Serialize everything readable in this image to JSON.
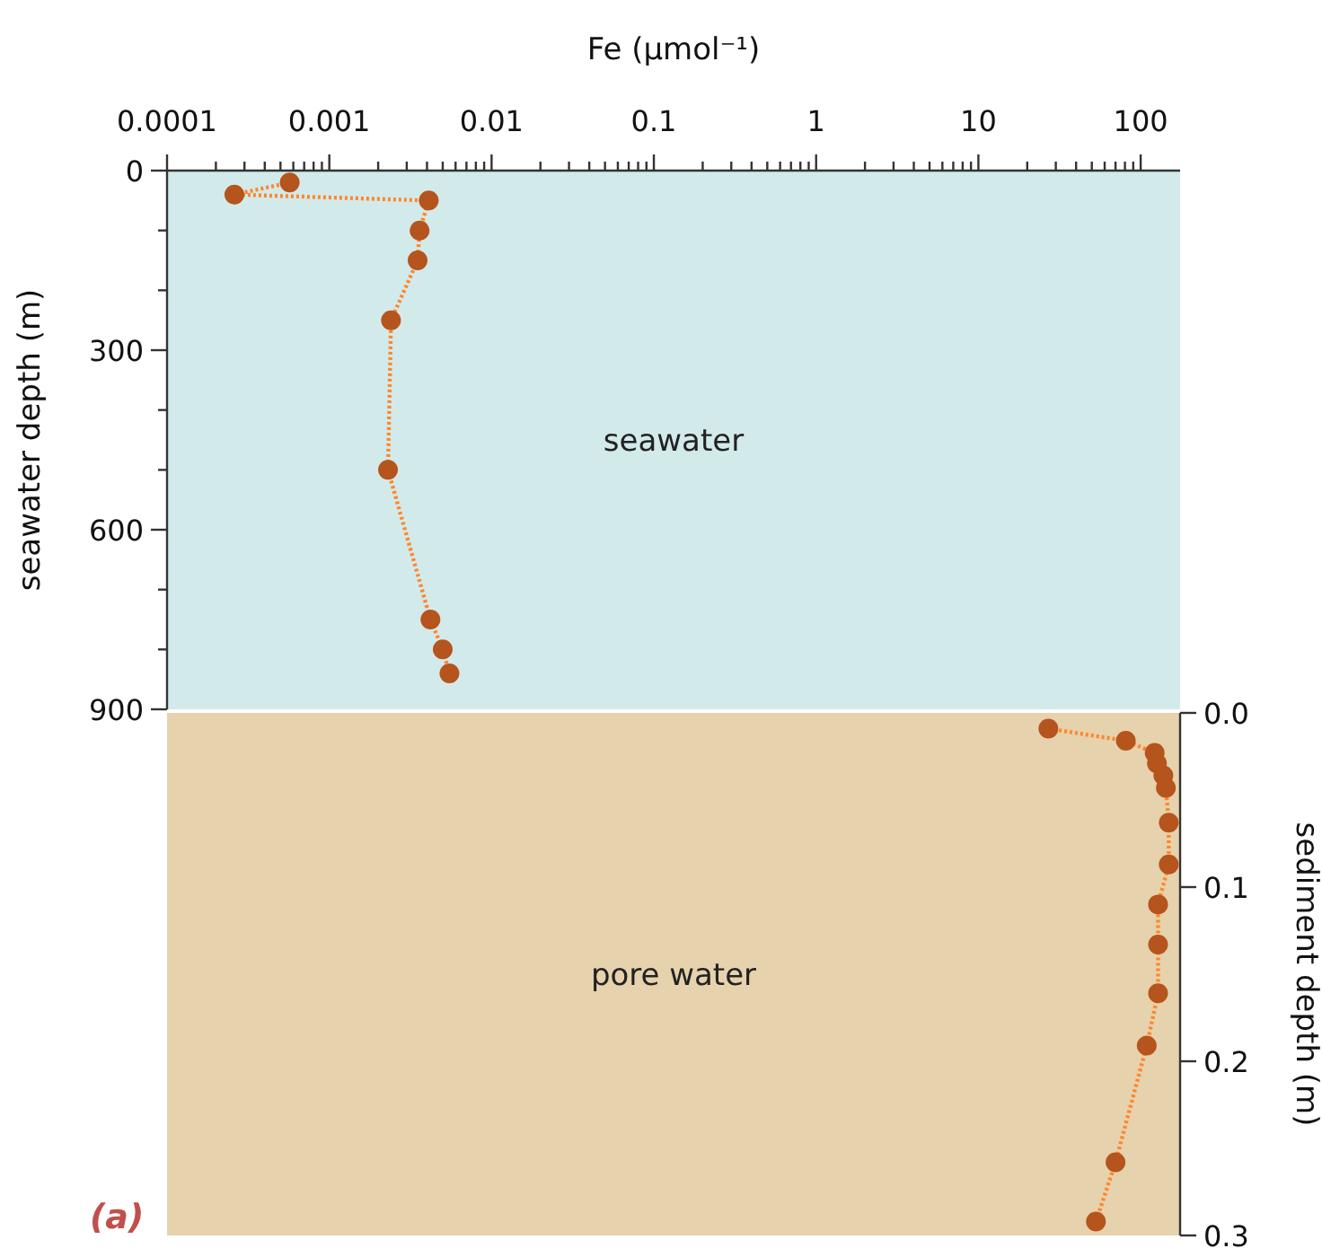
{
  "chart_data": [
    {
      "type": "line",
      "xlabel": "Fe (μmol⁻¹)",
      "ylabel": "seawater depth (m)",
      "log": "x",
      "xlim": [
        0.0001,
        175
      ],
      "xticks": [
        0.0001,
        {
          "value": 0.0002,
          "label": null
        },
        {
          "value": 0.0003,
          "label": null
        },
        {
          "value": 0.0004,
          "label": null
        },
        {
          "value": 0.0005,
          "label": null
        },
        {
          "value": 0.0006,
          "label": null
        },
        {
          "value": 0.0007,
          "label": null
        },
        {
          "value": 0.0008,
          "label": null
        },
        {
          "value": 0.0009,
          "label": null
        },
        0.001,
        {
          "value": 0.002,
          "label": null
        },
        {
          "value": 0.003,
          "label": null
        },
        {
          "value": 0.004,
          "label": null
        },
        {
          "value": 0.005,
          "label": null
        },
        {
          "value": 0.006,
          "label": null
        },
        {
          "value": 0.007,
          "label": null
        },
        {
          "value": 0.008,
          "label": null
        },
        {
          "value": 0.009,
          "label": null
        },
        0.01,
        {
          "value": 0.02,
          "label": null
        },
        {
          "value": 0.03,
          "label": null
        },
        {
          "value": 0.04,
          "label": null
        },
        {
          "value": 0.05,
          "label": null
        },
        {
          "value": 0.06,
          "label": null
        },
        {
          "value": 0.07,
          "label": null
        },
        {
          "value": 0.08,
          "label": null
        },
        {
          "value": 0.09,
          "label": null
        },
        0.1,
        {
          "value": 0.2,
          "label": null
        },
        {
          "value": 0.3,
          "label": null
        },
        {
          "value": 0.4,
          "label": null
        },
        {
          "value": 0.5,
          "label": null
        },
        {
          "value": 0.6,
          "label": null
        },
        {
          "value": 0.7,
          "label": null
        },
        {
          "value": 0.8,
          "label": null
        },
        {
          "value": 0.9,
          "label": null
        },
        1,
        {
          "value": 2,
          "label": null
        },
        {
          "value": 3,
          "label": null
        },
        {
          "value": 4,
          "label": null
        },
        {
          "value": 5,
          "label": null
        },
        {
          "value": 6,
          "label": null
        },
        {
          "value": 7,
          "label": null
        },
        {
          "value": 8,
          "label": null
        },
        {
          "value": 9,
          "label": null
        },
        10,
        {
          "value": 20,
          "label": null
        },
        {
          "value": 30,
          "label": null
        },
        {
          "value": 40,
          "label": null
        },
        {
          "value": 50,
          "label": null
        },
        {
          "value": 60,
          "label": null
        },
        {
          "value": 70,
          "label": null
        },
        {
          "value": 80,
          "label": null
        },
        {
          "value": 90,
          "label": null
        },
        100
      ],
      "ylim": [
        900,
        0
      ],
      "yticks": [
        0,
        {
          "value": 100,
          "label": null
        },
        {
          "value": 200,
          "label": null
        },
        300,
        {
          "value": 400,
          "label": null
        },
        {
          "value": 500,
          "label": null
        },
        600,
        {
          "value": 700,
          "label": null
        },
        {
          "value": 800,
          "label": null
        },
        900
      ],
      "bands": [
        {
          "axis": "y",
          "from": 0,
          "to": 900,
          "label": "seawater",
          "color": "#d3eaea"
        }
      ],
      "marker": "circle",
      "line_style": "dotted",
      "series": [
        {
          "color": "#b5541c",
          "x": [
            0.00057,
            0.00026,
            0.0041,
            0.0036,
            0.0035,
            0.0024,
            0.0023,
            0.0042,
            0.005,
            0.0055
          ],
          "values": [
            20,
            40,
            50,
            100,
            150,
            250,
            500,
            750,
            800,
            840
          ]
        }
      ]
    },
    {
      "type": "line",
      "ylabel": "sediment depth (m)",
      "log": "x",
      "xlim": [
        0.0001,
        175
      ],
      "tick_labels": "y",
      "ylim": [
        0.3,
        0
      ],
      "yticks": [
        {
          "value": 0,
          "label": "0.0"
        },
        0.1,
        0.2,
        0.3
      ],
      "bands": [
        {
          "axis": "y",
          "from": 0,
          "to": 0.3,
          "label": "pore water",
          "color": "#e6d2ad"
        }
      ],
      "annotations": [
        "(a)"
      ],
      "marker": "circle",
      "line_style": "dotted",
      "series": [
        {
          "color": "#b5541c",
          "x": [
            27,
            81,
            122,
            126,
            138,
            143,
            149,
            149,
            128,
            128,
            128,
            109,
            70,
            53
          ],
          "values": [
            0.009,
            0.016,
            0.023,
            0.029,
            0.036,
            0.043,
            0.063,
            0.087,
            0.11,
            0.133,
            0.161,
            0.191,
            0.258,
            0.292
          ]
        }
      ]
    }
  ]
}
